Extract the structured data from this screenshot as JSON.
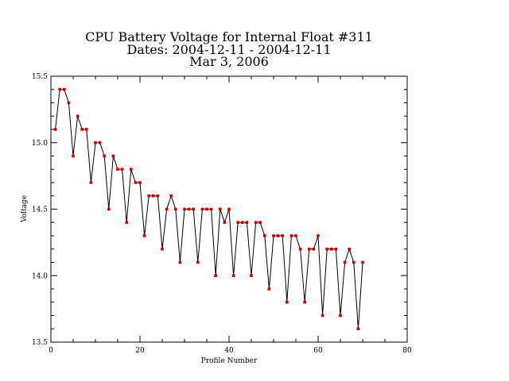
{
  "chart_data": {
    "type": "line",
    "title_lines": [
      "CPU Battery Voltage for Internal Float #311",
      "Dates:  2004-12-11 -  2004-12-11",
      "Mar  3, 2006"
    ],
    "xlabel": "Profile Number",
    "ylabel": "Voltage",
    "xlim": [
      0,
      80
    ],
    "ylim": [
      13.5,
      15.5
    ],
    "x_major_ticks": [
      0,
      20,
      40,
      60,
      80
    ],
    "x_minor_step": 5,
    "y_major_ticks": [
      13.5,
      14.0,
      14.5,
      15.0,
      15.5
    ],
    "y_tick_labels": [
      "13.5",
      "14.0",
      "14.5",
      "15.0",
      "15.5"
    ],
    "y_minor_step": 0.1,
    "grid": false,
    "line_color": "#000000",
    "marker_color": "#cc0000",
    "series": [
      {
        "x": [
          1,
          2,
          3,
          4,
          5,
          6,
          7,
          8,
          9,
          10,
          11,
          12,
          13,
          14,
          15,
          16,
          17,
          18,
          19,
          20,
          21,
          22,
          23,
          24,
          25,
          26,
          27,
          28,
          29,
          30,
          31,
          32,
          33,
          34,
          35,
          36,
          37,
          38,
          39,
          40,
          41,
          42,
          43,
          44,
          45,
          46,
          47,
          48,
          49,
          50,
          51,
          52,
          53,
          54,
          55,
          56,
          57,
          58,
          59,
          60,
          61,
          62,
          63,
          64,
          65,
          66,
          67,
          68,
          69,
          70
        ],
        "y": [
          15.1,
          15.4,
          15.4,
          15.3,
          14.9,
          15.2,
          15.1,
          15.1,
          14.7,
          15.0,
          15.0,
          14.9,
          14.5,
          14.9,
          14.8,
          14.8,
          14.4,
          14.8,
          14.7,
          14.7,
          14.3,
          14.6,
          14.6,
          14.6,
          14.2,
          14.5,
          14.6,
          14.5,
          14.1,
          14.5,
          14.5,
          14.5,
          14.1,
          14.5,
          14.5,
          14.5,
          14.0,
          14.5,
          14.4,
          14.5,
          14.0,
          14.4,
          14.4,
          14.4,
          14.0,
          14.4,
          14.4,
          14.3,
          13.9,
          14.3,
          14.3,
          14.3,
          13.8,
          14.3,
          14.3,
          14.2,
          13.8,
          14.2,
          14.2,
          14.3,
          13.7,
          14.2,
          14.2,
          14.2,
          13.7,
          14.1,
          14.2,
          14.1,
          13.6,
          14.1
        ]
      }
    ]
  }
}
